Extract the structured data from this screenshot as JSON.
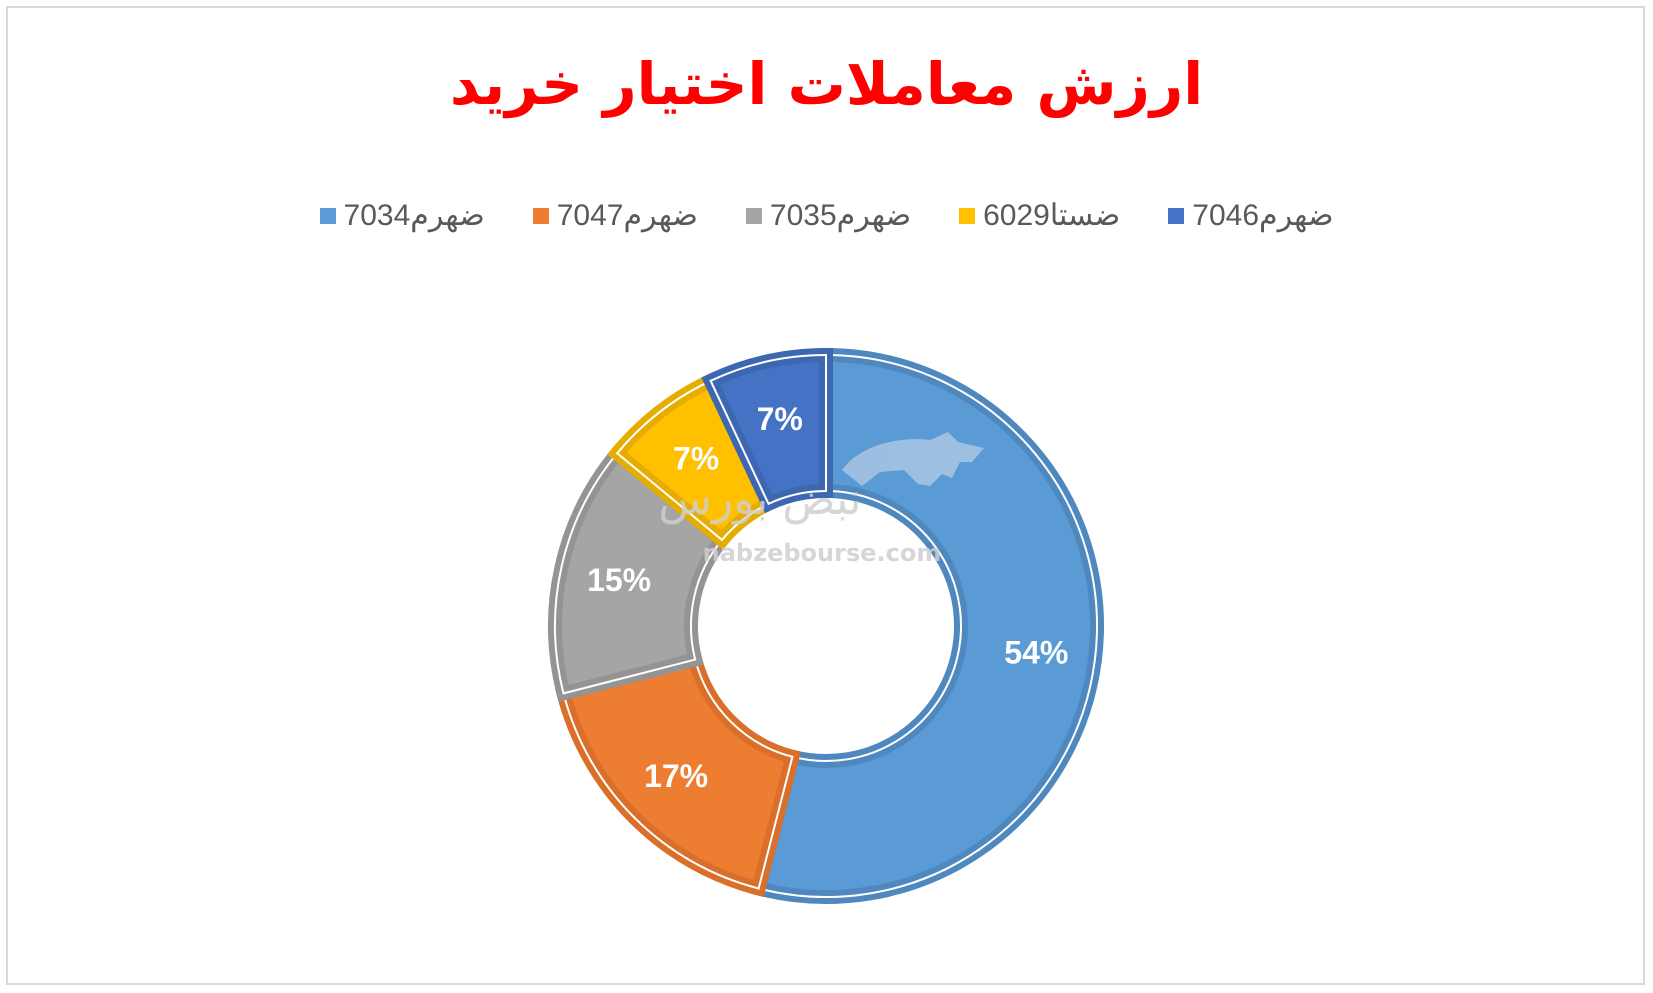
{
  "chart_data": {
    "type": "pie",
    "variant": "doughnut",
    "title": "ارزش معاملات اختیار خرید",
    "legend_position": "top",
    "categories": [
      "ضهرم7034",
      "ضهرم7047",
      "ضهرم7035",
      "ضستا6029",
      "ضهرم7046"
    ],
    "values": [
      54,
      17,
      15,
      7,
      7
    ],
    "value_labels": [
      "54%",
      "17%",
      "15%",
      "7%",
      "7%"
    ],
    "colors": [
      "#5b9bd5",
      "#ed7d31",
      "#a5a5a5",
      "#ffc000",
      "#4472c4"
    ],
    "edge_colors": [
      "#4f88bf",
      "#d96f2a",
      "#949494",
      "#e5ad00",
      "#3d67b0"
    ]
  },
  "watermark": {
    "text": "nabzebourse.com",
    "logo_text": "نبض بورس",
    "logo": "bull-logo"
  }
}
